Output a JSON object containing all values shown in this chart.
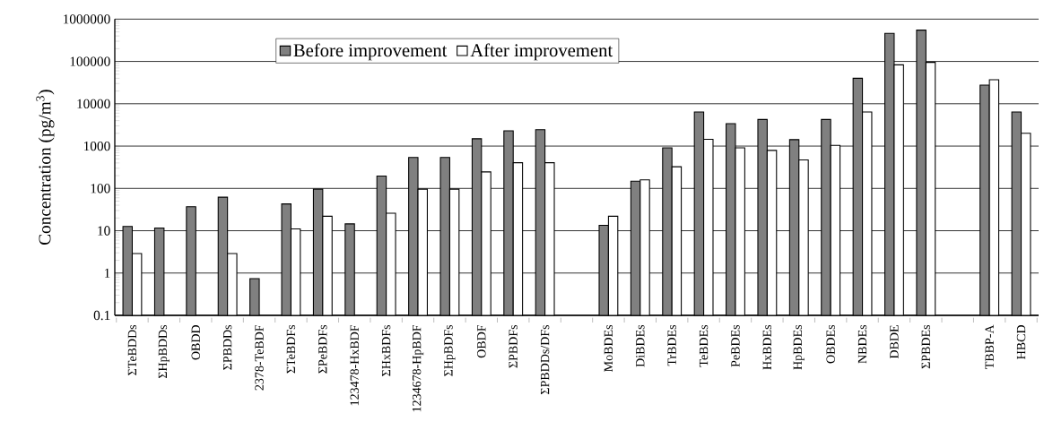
{
  "chart_data": {
    "type": "bar",
    "ylabel": "Concentration (pg/m$^{3}$)",
    "categories": [
      "ΣTeBDDs",
      "ΣHpBDDs",
      "OBDD",
      "ΣPBDDs",
      "2378-TeBDF",
      "ΣTeBDFs",
      "ΣPeBDFs",
      "123478-HxBDF",
      "ΣHxBDFs",
      "1234678-HpBDF",
      "ΣHpBDFs",
      "OBDF",
      "ΣPBDFs",
      "ΣPBDDs/DFs",
      null,
      "MoBDEs",
      "DiBDEs",
      "TrBDEs",
      "TeBDEs",
      "PeBDEs",
      "HxBDEs",
      "HpBDEs",
      "OBDEs",
      "NBDEs",
      "DBDE",
      "ΣPBDEs",
      null,
      "TBBP-A",
      "HBCD"
    ],
    "series": [
      {
        "name": "Before improvement",
        "color": "#808080",
        "values": [
          12.6,
          11.6,
          37,
          62,
          0.74,
          43,
          96,
          14.5,
          195,
          540,
          540,
          1490,
          2300,
          2450,
          null,
          13.4,
          148,
          910,
          6400,
          3400,
          4250,
          1420,
          4250,
          40000,
          460000,
          550000,
          null,
          27500,
          6400
        ]
      },
      {
        "name": "After improvement",
        "color": "#ffffff",
        "values": [
          2.9,
          null,
          null,
          2.9,
          null,
          11,
          22,
          null,
          26,
          96,
          96,
          245,
          405,
          405,
          null,
          22,
          159,
          325,
          1440,
          910,
          790,
          470,
          1040,
          6400,
          83000,
          95000,
          null,
          37000,
          2000
        ]
      }
    ],
    "log": "y",
    "ylim": [
      0.1,
      1000000
    ],
    "yticks": [
      0.1,
      1,
      10,
      100,
      1000,
      10000,
      100000,
      1000000
    ],
    "grid": "y",
    "legend": "top"
  }
}
